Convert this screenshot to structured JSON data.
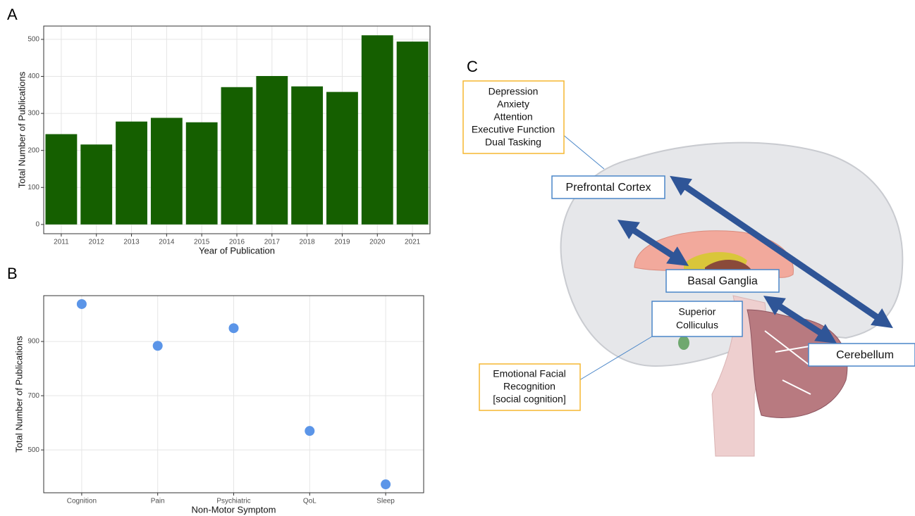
{
  "chart_data": [
    {
      "type": "bar",
      "panel": "A",
      "x_label": "Year of Publication",
      "y_label": "Total Number of Publications",
      "categories": [
        "2011",
        "2012",
        "2013",
        "2014",
        "2015",
        "2016",
        "2017",
        "2018",
        "2019",
        "2020",
        "2021"
      ],
      "values": [
        244,
        216,
        278,
        288,
        276,
        371,
        401,
        373,
        358,
        511,
        494
      ],
      "color": "#155f00",
      "ylim": [
        -25,
        536
      ],
      "yticks": [
        0,
        100,
        200,
        300,
        400,
        500
      ],
      "grid": true
    },
    {
      "type": "scatter",
      "panel": "B",
      "x_label": "Non-Motor Symptom",
      "y_label": "Total Number of Publications",
      "categories": [
        "Cognition",
        "Pain",
        "Psychiatric",
        "QoL",
        "Sleep"
      ],
      "values": [
        1038,
        884,
        949,
        570,
        373
      ],
      "color": "#5b95e8",
      "ylim": [
        342,
        1069
      ],
      "yticks": [
        500,
        700,
        900
      ],
      "grid": true
    }
  ],
  "diagram": {
    "panel": "C",
    "functions_box": [
      "Depression",
      "Anxiety",
      "Attention",
      "Executive Function",
      "Dual Tasking"
    ],
    "prefrontal": "Prefrontal Cortex",
    "basal_ganglia": "Basal Ganglia",
    "colliculus": [
      "Superior",
      "Colliculus"
    ],
    "cerebellum": "Cerebellum",
    "social_box": [
      "Emotional Facial",
      "Recognition",
      "[social cognition]"
    ]
  }
}
